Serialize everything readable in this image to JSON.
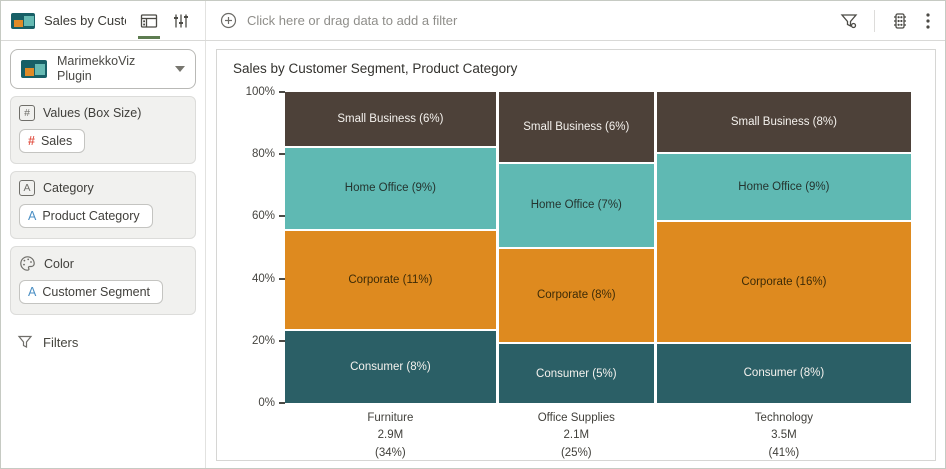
{
  "sidebar_header": {
    "title": "Sales by Custo...",
    "tabs": [
      {
        "id": "grammar",
        "icon": "grammar-panel-icon",
        "active": true
      },
      {
        "id": "properties",
        "icon": "properties-sliders-icon",
        "active": false
      }
    ]
  },
  "filter_bar": {
    "prompt": "Click here or drag data to add a filter",
    "icons": [
      "add-filter-icon",
      "filter-funnel-icon",
      "canvas-settings-icon",
      "kebab-menu-icon"
    ]
  },
  "sidebar": {
    "viz_selector": {
      "label": "MarimekkoViz Plugin"
    },
    "sections": [
      {
        "id": "values",
        "label": "Values (Box Size)",
        "icon_glyph": "#",
        "pills": [
          {
            "glyph": "#",
            "glyph_type": "measure",
            "label": "Sales"
          }
        ]
      },
      {
        "id": "category",
        "label": "Category",
        "icon_glyph": "A",
        "pills": [
          {
            "glyph": "A",
            "glyph_type": "attribute",
            "label": "Product Category"
          }
        ]
      },
      {
        "id": "color",
        "label": "Color",
        "icon_glyph": "palette",
        "pills": [
          {
            "glyph": "A",
            "glyph_type": "attribute",
            "label": "Customer Segment"
          }
        ]
      }
    ],
    "filters_label": "Filters"
  },
  "chart_data": {
    "type": "marimekko",
    "title": "Sales by Customer Segment, Product Category",
    "ylabel_ticks": [
      "0%",
      "20%",
      "40%",
      "60%",
      "80%",
      "100%"
    ],
    "y_axis_range": [
      0,
      100
    ],
    "series_order_top_to_bottom": [
      "Small Business",
      "Home Office",
      "Corporate",
      "Consumer"
    ],
    "colors": {
      "Small Business": "#4D4139",
      "Home Office": "#5FB9B3",
      "Corporate": "#DE8A1F",
      "Consumer": "#2B5F66"
    },
    "text_colors": {
      "Small Business": "#F5F2EE",
      "Home Office": "#24342F",
      "Corporate": "#3D2B07",
      "Consumer": "#F5F2EE"
    },
    "columns": [
      {
        "category": "Furniture",
        "total": "2.9M",
        "share": "(34%)",
        "width_pct": 34,
        "segments": [
          {
            "name": "Small Business",
            "pct": 6,
            "label": "Small Business (6%)"
          },
          {
            "name": "Home Office",
            "pct": 9,
            "label": "Home Office (9%)"
          },
          {
            "name": "Corporate",
            "pct": 11,
            "label": "Corporate (11%)"
          },
          {
            "name": "Consumer",
            "pct": 8,
            "label": "Consumer (8%)"
          }
        ]
      },
      {
        "category": "Office Supplies",
        "total": "2.1M",
        "share": "(25%)",
        "width_pct": 25,
        "segments": [
          {
            "name": "Small Business",
            "pct": 6,
            "label": "Small Business (6%)"
          },
          {
            "name": "Home Office",
            "pct": 7,
            "label": "Home Office (7%)"
          },
          {
            "name": "Corporate",
            "pct": 8,
            "label": "Corporate (8%)"
          },
          {
            "name": "Consumer",
            "pct": 5,
            "label": "Consumer (5%)"
          }
        ]
      },
      {
        "category": "Technology",
        "total": "3.5M",
        "share": "(41%)",
        "width_pct": 41,
        "segments": [
          {
            "name": "Small Business",
            "pct": 8,
            "label": "Small Business (8%)"
          },
          {
            "name": "Home Office",
            "pct": 9,
            "label": "Home Office (9%)"
          },
          {
            "name": "Corporate",
            "pct": 16,
            "label": "Corporate (16%)"
          },
          {
            "name": "Consumer",
            "pct": 8,
            "label": "Consumer (8%)"
          }
        ]
      }
    ]
  }
}
